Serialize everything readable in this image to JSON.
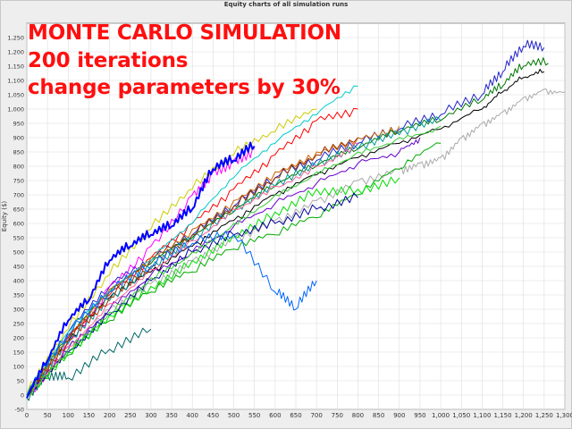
{
  "overlay": {
    "line1": "MONTE CARLO SIMULATION",
    "line2": "200 iterations",
    "line3": "change parameters by 30%"
  },
  "colors": {
    "overlay_text": "#ff0f0f",
    "background": "#eeeeee",
    "plot_bg": "#ffffff",
    "grid": "#dddddd",
    "highlight_series": "#0000ff"
  },
  "chart_data": {
    "type": "line",
    "title": "Equity charts of all simulation runs",
    "xlabel": "",
    "ylabel": "Equity ($)",
    "xlim": [
      0,
      1300
    ],
    "ylim": [
      -50,
      1300
    ],
    "grid": true,
    "legend": "none",
    "num_runs": 200,
    "x_ticks": [
      "0",
      "50",
      "100",
      "150",
      "200",
      "250",
      "300",
      "350",
      "400",
      "450",
      "500",
      "550",
      "600",
      "650",
      "700",
      "750",
      "800",
      "850",
      "900",
      "950",
      "1,000",
      "1,050",
      "1,100",
      "1,150",
      "1,200",
      "1,250",
      "1,300"
    ],
    "y_ticks": [
      "-50",
      "0",
      "50",
      "100",
      "150",
      "200",
      "250",
      "300",
      "350",
      "400",
      "450",
      "500",
      "550",
      "600",
      "650",
      "700",
      "750",
      "800",
      "850",
      "900",
      "950",
      "1,000",
      "1,050",
      "1,100",
      "1,150",
      "1,200",
      "1,250"
    ],
    "series": [
      {
        "color": "#0000ff",
        "width": 2,
        "x": [
          0,
          50,
          100,
          150,
          200,
          250,
          300,
          350,
          400,
          450,
          500,
          550
        ],
        "y": [
          -10,
          120,
          260,
          330,
          470,
          520,
          560,
          590,
          650,
          790,
          820,
          870
        ]
      },
      {
        "color": "#2222cc",
        "width": 1,
        "x": [
          0,
          100,
          200,
          300,
          400,
          500,
          600,
          700,
          800,
          900,
          1000,
          1100,
          1150,
          1200,
          1250
        ],
        "y": [
          0,
          220,
          380,
          470,
          560,
          660,
          760,
          820,
          880,
          930,
          980,
          1050,
          1130,
          1220,
          1215
        ]
      },
      {
        "color": "#007700",
        "width": 1,
        "x": [
          0,
          100,
          200,
          300,
          400,
          500,
          600,
          700,
          800,
          900,
          1000,
          1100,
          1150,
          1200,
          1260
        ],
        "y": [
          0,
          200,
          360,
          460,
          550,
          640,
          730,
          800,
          860,
          920,
          960,
          1030,
          1080,
          1150,
          1160
        ]
      },
      {
        "color": "#000000",
        "width": 1,
        "x": [
          0,
          100,
          200,
          300,
          400,
          500,
          600,
          700,
          800,
          900,
          1000,
          1100,
          1150,
          1200,
          1250
        ],
        "y": [
          0,
          190,
          340,
          430,
          520,
          610,
          700,
          770,
          830,
          880,
          930,
          1000,
          1060,
          1110,
          1130
        ]
      },
      {
        "color": "#aaaaaa",
        "width": 1,
        "x": [
          0,
          100,
          200,
          300,
          400,
          500,
          600,
          700,
          800,
          900,
          950,
          1000,
          1050,
          1100,
          1150,
          1200,
          1250,
          1300
        ],
        "y": [
          0,
          170,
          300,
          390,
          470,
          550,
          610,
          680,
          750,
          790,
          810,
          830,
          900,
          950,
          990,
          1040,
          1070,
          1060
        ]
      },
      {
        "color": "#ff00ff",
        "width": 1,
        "x": [
          0,
          100,
          200,
          300,
          400,
          450,
          500,
          550
        ],
        "y": [
          -10,
          180,
          380,
          520,
          700,
          780,
          820,
          860
        ]
      },
      {
        "color": "#ff0000",
        "width": 1,
        "x": [
          0,
          100,
          200,
          300,
          400,
          500,
          600,
          700,
          800
        ],
        "y": [
          0,
          200,
          350,
          480,
          600,
          720,
          840,
          960,
          1000
        ]
      },
      {
        "color": "#00cccc",
        "width": 1,
        "x": [
          0,
          100,
          200,
          300,
          400,
          500,
          600,
          700,
          800
        ],
        "y": [
          0,
          220,
          360,
          470,
          600,
          760,
          880,
          980,
          1080
        ]
      },
      {
        "color": "#00aa00",
        "width": 1,
        "x": [
          0,
          100,
          200,
          300,
          400,
          500,
          600,
          700,
          800,
          900,
          1000
        ],
        "y": [
          0,
          140,
          260,
          360,
          430,
          510,
          560,
          620,
          700,
          790,
          880
        ]
      },
      {
        "color": "#006666",
        "width": 1,
        "x": [
          0,
          50,
          100,
          200,
          300
        ],
        "y": [
          -10,
          70,
          60,
          160,
          230
        ]
      },
      {
        "color": "#00dd00",
        "width": 1,
        "x": [
          0,
          100,
          200,
          300,
          400,
          500,
          600,
          700,
          800,
          900
        ],
        "y": [
          0,
          150,
          280,
          380,
          470,
          560,
          640,
          720,
          720,
          760
        ]
      },
      {
        "color": "#cc6600",
        "width": 1,
        "x": [
          0,
          100,
          200,
          300,
          400,
          500,
          600,
          700,
          800,
          900
        ],
        "y": [
          0,
          210,
          370,
          480,
          580,
          680,
          780,
          850,
          900,
          940
        ]
      },
      {
        "color": "#6600cc",
        "width": 1,
        "x": [
          0,
          100,
          200,
          300,
          400,
          500,
          600,
          700,
          800,
          900,
          950
        ],
        "y": [
          0,
          160,
          300,
          420,
          500,
          590,
          670,
          740,
          810,
          850,
          900
        ]
      },
      {
        "color": "#cccc00",
        "width": 1,
        "x": [
          0,
          100,
          200,
          300,
          400,
          500,
          600,
          700
        ],
        "y": [
          0,
          230,
          420,
          580,
          720,
          840,
          920,
          1000
        ]
      },
      {
        "color": "#009999",
        "width": 1,
        "x": [
          0,
          100,
          200,
          300,
          400,
          500,
          600,
          700,
          800,
          900,
          1000
        ],
        "y": [
          0,
          180,
          330,
          440,
          540,
          640,
          730,
          800,
          860,
          910,
          960
        ]
      },
      {
        "color": "#000099",
        "width": 1,
        "x": [
          0,
          100,
          200,
          300,
          400,
          500,
          600,
          700,
          800
        ],
        "y": [
          0,
          150,
          280,
          400,
          500,
          560,
          600,
          650,
          690
        ]
      },
      {
        "color": "#ff6699",
        "width": 1,
        "x": [
          0,
          100,
          200,
          300,
          400,
          500,
          600,
          700,
          800
        ],
        "y": [
          0,
          170,
          320,
          440,
          540,
          650,
          730,
          800,
          880
        ]
      },
      {
        "color": "#33cc33",
        "width": 1,
        "x": [
          0,
          100,
          200,
          300,
          400,
          500,
          600,
          700,
          800,
          900,
          1000
        ],
        "y": [
          0,
          160,
          290,
          410,
          500,
          600,
          700,
          780,
          850,
          900,
          940
        ]
      },
      {
        "color": "#993300",
        "width": 1,
        "x": [
          0,
          100,
          200,
          300,
          400,
          500,
          600,
          700,
          800
        ],
        "y": [
          0,
          190,
          340,
          450,
          560,
          660,
          760,
          840,
          900
        ]
      },
      {
        "color": "#0066ff",
        "width": 1,
        "x": [
          0,
          100,
          200,
          300,
          400,
          500,
          600,
          650,
          700
        ],
        "y": [
          0,
          210,
          360,
          450,
          530,
          560,
          360,
          300,
          400
        ]
      }
    ]
  }
}
